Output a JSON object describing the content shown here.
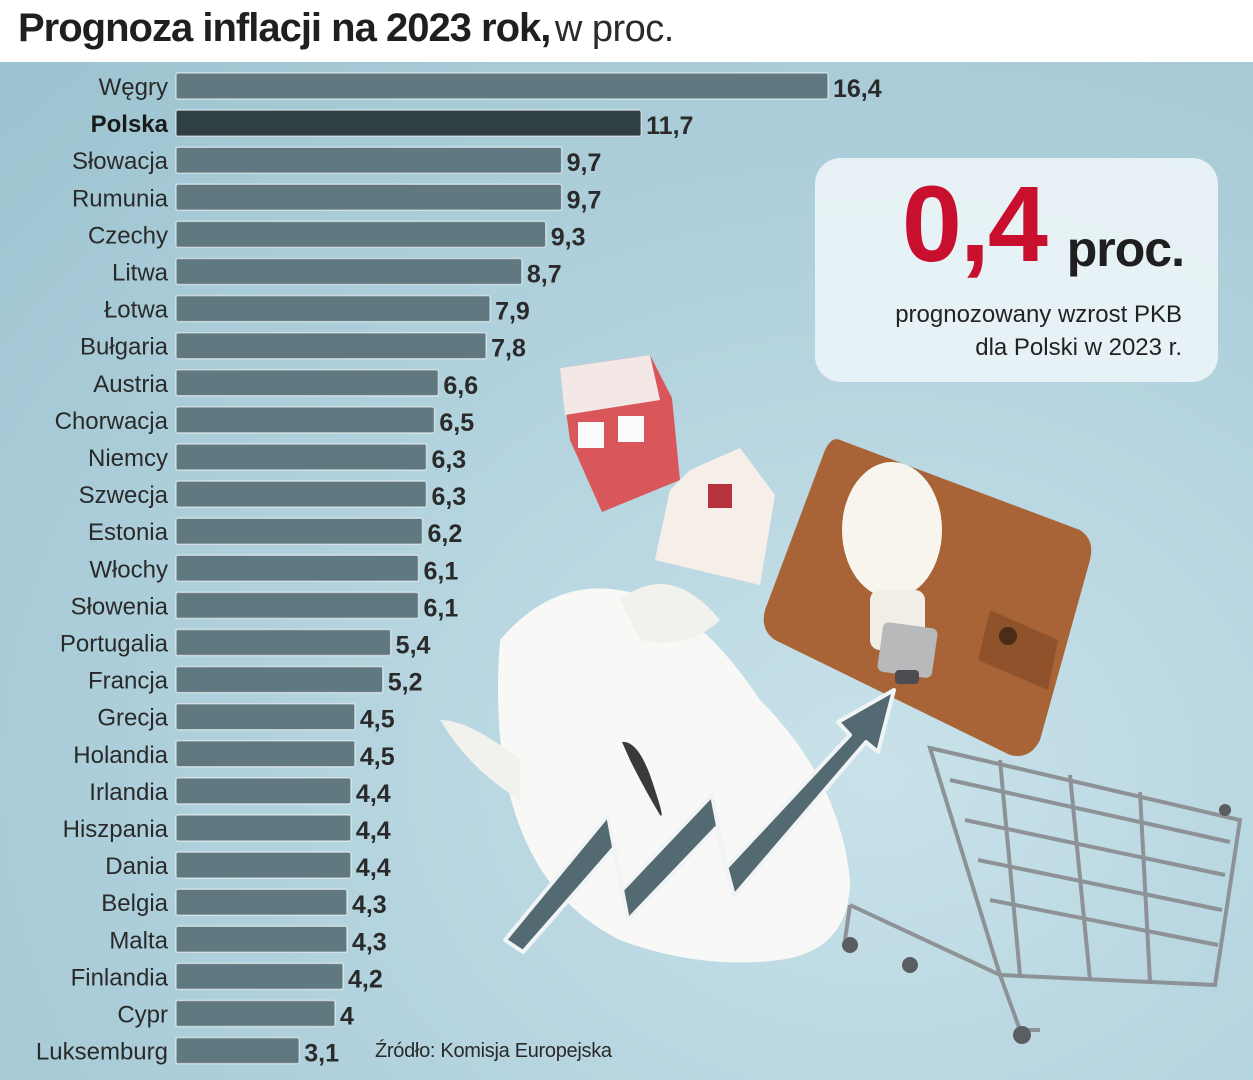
{
  "title": {
    "bold": "Prognoza inflacji na 2023 rok,",
    "light": "w proc."
  },
  "chart_data": {
    "type": "bar",
    "orientation": "horizontal",
    "title": "Prognoza inflacji na 2023 rok, w proc.",
    "categories": [
      "Węgry",
      "Polska",
      "Słowacja",
      "Rumunia",
      "Czechy",
      "Litwa",
      "Łotwa",
      "Bułgaria",
      "Austria",
      "Chorwacja",
      "Niemcy",
      "Szwecja",
      "Estonia",
      "Włochy",
      "Słowenia",
      "Portugalia",
      "Francja",
      "Grecja",
      "Holandia",
      "Irlandia",
      "Hiszpania",
      "Dania",
      "Belgia",
      "Malta",
      "Finlandia",
      "Cypr",
      "Luksemburg"
    ],
    "values": [
      16.4,
      11.7,
      9.7,
      9.7,
      9.3,
      8.7,
      7.9,
      7.8,
      6.6,
      6.5,
      6.3,
      6.3,
      6.2,
      6.1,
      6.1,
      5.4,
      5.2,
      4.5,
      4.5,
      4.4,
      4.4,
      4.4,
      4.3,
      4.3,
      4.2,
      4,
      3.1
    ],
    "value_labels": [
      "16,4",
      "11,7",
      "9,7",
      "9,7",
      "9,3",
      "8,7",
      "7,9",
      "7,8",
      "6,6",
      "6,5",
      "6,3",
      "6,3",
      "6,2",
      "6,1",
      "6,1",
      "5,4",
      "5,2",
      "4,5",
      "4,5",
      "4,4",
      "4,4",
      "4,4",
      "4,3",
      "4,3",
      "4,2",
      "4",
      "3,1"
    ],
    "highlight": "Polska",
    "bar_color": "#607880",
    "highlight_color": "#2f3f43",
    "xlim": [
      0,
      16.4
    ]
  },
  "callout": {
    "number": "0,4",
    "unit": "proc.",
    "desc_line1": "prognozowany wzrost PKB",
    "desc_line2": "dla Polski w 2023 r.",
    "number_color": "#c8102e"
  },
  "source": "Źródło: Komisja Europejska"
}
